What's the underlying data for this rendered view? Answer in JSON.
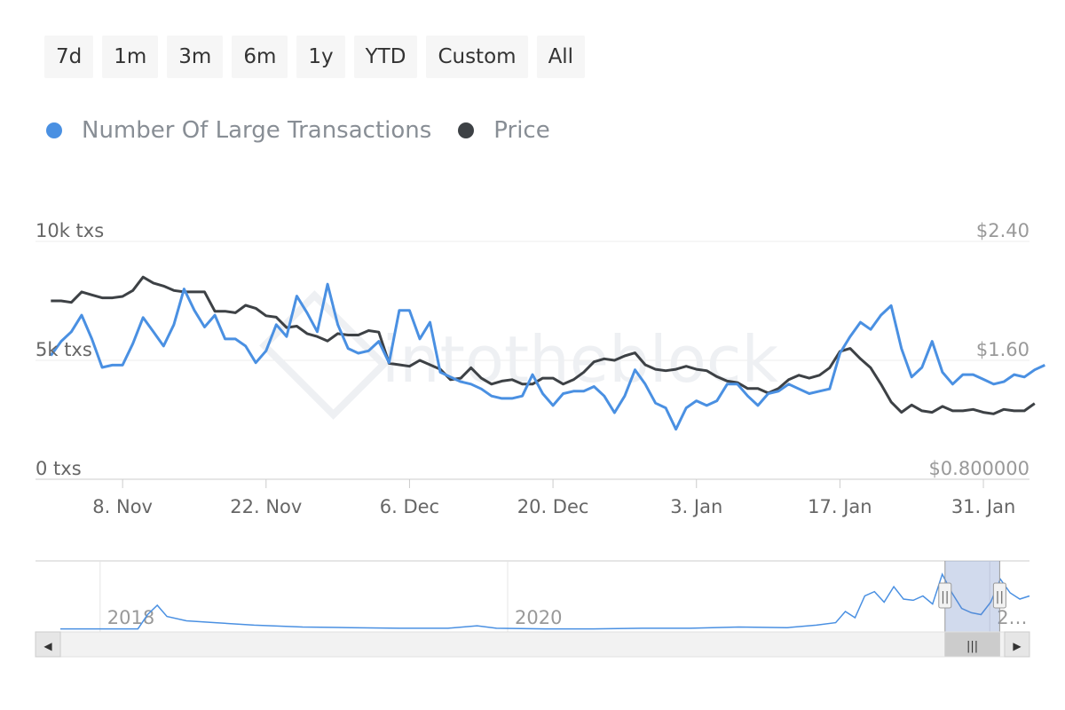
{
  "range_buttons": [
    "7d",
    "1m",
    "3m",
    "6m",
    "1y",
    "YTD",
    "Custom",
    "All"
  ],
  "legend": [
    {
      "label": "Number Of Large Transactions",
      "color": "#4a90e2"
    },
    {
      "label": "Price",
      "color": "#3d4145"
    }
  ],
  "watermark": "intotheblock",
  "chart_data": {
    "type": "line",
    "y_left": {
      "ticks": [
        "10k txs",
        "5k txs",
        "0 txs"
      ],
      "range": [
        0,
        10000
      ]
    },
    "y_right": {
      "ticks": [
        "$2.40",
        "$1.60",
        "$0.800000"
      ],
      "range": [
        0.8,
        2.4
      ]
    },
    "x_ticks": [
      {
        "label": "8. Nov",
        "day": 0
      },
      {
        "label": "22. Nov",
        "day": 14
      },
      {
        "label": "6. Dec",
        "day": 28
      },
      {
        "label": "20. Dec",
        "day": 42
      },
      {
        "label": "3. Jan",
        "day": 56
      },
      {
        "label": "17. Jan",
        "day": 70
      },
      {
        "label": "31. Jan",
        "day": 84
      }
    ],
    "x_range": [
      -8.5,
      88.5
    ],
    "series": [
      {
        "name": "Number Of Large Transactions",
        "color": "#4a90e2",
        "axis": "left",
        "values": [
          5200,
          5800,
          6200,
          6900,
          5900,
          4700,
          4800,
          4800,
          5700,
          6800,
          6200,
          5600,
          6500,
          8000,
          7100,
          6400,
          6900,
          5900,
          5900,
          5600,
          4900,
          5400,
          6500,
          6000,
          7700,
          7000,
          6200,
          8200,
          6500,
          5500,
          5300,
          5400,
          5800,
          4900,
          7100,
          7100,
          5900,
          6600,
          4500,
          4300,
          4100,
          4000,
          3800,
          3500,
          3400,
          3400,
          3500,
          4400,
          3600,
          3100,
          3600,
          3700,
          3700,
          3900,
          3500,
          2800,
          3500,
          4600,
          4000,
          3200,
          3000,
          2100,
          3000,
          3300,
          3100,
          3300,
          4000,
          4000,
          3500,
          3100,
          3600,
          3700,
          4000,
          3800,
          3600,
          3700,
          3800,
          5300,
          6000,
          6600,
          6300,
          6900,
          7300,
          5500,
          4300,
          4700,
          5800,
          4500,
          4000,
          4400,
          4400,
          4200,
          4000,
          4100,
          4400,
          4300,
          4600,
          4800
        ]
      },
      {
        "name": "Price",
        "color": "#3d4145",
        "axis": "right",
        "values": [
          2.0,
          2.0,
          1.99,
          2.06,
          2.04,
          2.02,
          2.02,
          2.03,
          2.07,
          2.16,
          2.12,
          2.1,
          2.07,
          2.06,
          2.06,
          2.06,
          1.93,
          1.93,
          1.92,
          1.97,
          1.95,
          1.9,
          1.89,
          1.82,
          1.83,
          1.78,
          1.76,
          1.73,
          1.78,
          1.77,
          1.77,
          1.8,
          1.79,
          1.58,
          1.57,
          1.56,
          1.6,
          1.57,
          1.54,
          1.47,
          1.48,
          1.55,
          1.48,
          1.44,
          1.46,
          1.47,
          1.44,
          1.44,
          1.48,
          1.48,
          1.44,
          1.47,
          1.52,
          1.59,
          1.61,
          1.6,
          1.63,
          1.65,
          1.57,
          1.54,
          1.53,
          1.54,
          1.56,
          1.54,
          1.53,
          1.49,
          1.46,
          1.45,
          1.41,
          1.41,
          1.38,
          1.41,
          1.47,
          1.5,
          1.48,
          1.5,
          1.55,
          1.66,
          1.68,
          1.61,
          1.55,
          1.44,
          1.32,
          1.25,
          1.3,
          1.26,
          1.25,
          1.29,
          1.26,
          1.26,
          1.27,
          1.25,
          1.24,
          1.27,
          1.26,
          1.26,
          1.31
        ]
      }
    ]
  },
  "navigator": {
    "labels": [
      {
        "text": "2018",
        "pos": 0.065
      },
      {
        "text": "2020",
        "pos": 0.475
      },
      {
        "text": "2…",
        "pos": 0.96
      }
    ],
    "selected_range": [
      0.915,
      0.97
    ],
    "handle_glyph": "||",
    "scrollbar_grip": "|||",
    "arrow_left": "◀",
    "arrow_right": "▶"
  }
}
